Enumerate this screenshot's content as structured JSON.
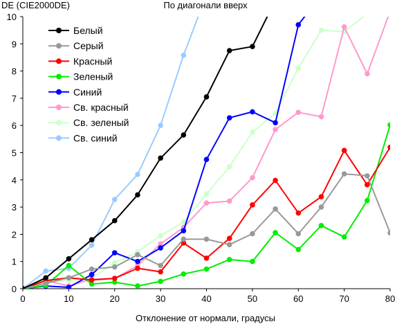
{
  "chart_data": {
    "type": "line",
    "title": "По диагонали вверх",
    "ylabel": "DE (CIE2000DE)",
    "xlabel": "Отклонение от нормали, градусы",
    "xlim": [
      0,
      80
    ],
    "ylim": [
      0,
      10
    ],
    "xticks": [
      0,
      10,
      20,
      30,
      40,
      50,
      60,
      70,
      80
    ],
    "yticks": [
      0,
      1,
      2,
      3,
      4,
      5,
      6,
      7,
      8,
      9,
      10
    ],
    "grid": false,
    "legend_position": "top-left",
    "x": [
      0,
      5,
      10,
      15,
      20,
      25,
      30,
      35,
      40,
      45,
      50,
      55,
      60,
      65,
      70,
      75,
      80
    ],
    "series": [
      {
        "name": "Белый",
        "color": "#000000",
        "values": [
          0,
          0.4,
          1.1,
          1.8,
          2.5,
          3.45,
          4.8,
          5.65,
          7.05,
          8.75,
          8.9,
          10.6,
          null,
          null,
          null,
          null,
          null
        ]
      },
      {
        "name": "Серый",
        "color": "#999999",
        "values": [
          0,
          0.2,
          0.4,
          0.72,
          0.8,
          1.25,
          0.85,
          1.82,
          1.82,
          1.62,
          2.02,
          2.93,
          2.02,
          3.0,
          4.22,
          4.15,
          2.05
        ]
      },
      {
        "name": "Красный",
        "color": "#ff0000",
        "values": [
          0,
          0.3,
          0.4,
          0.32,
          0.38,
          0.75,
          0.62,
          1.68,
          1.12,
          1.85,
          3.08,
          3.98,
          2.78,
          3.38,
          5.08,
          3.82,
          5.2
        ]
      },
      {
        "name": "Зеленый",
        "color": "#00ee00",
        "values": [
          0,
          0.12,
          0.85,
          0.17,
          0.24,
          0.1,
          0.27,
          0.54,
          0.72,
          1.07,
          1.0,
          2.06,
          1.44,
          2.32,
          1.9,
          3.24,
          6.02
        ]
      },
      {
        "name": "Синий",
        "color": "#0000ff",
        "values": [
          0,
          0.1,
          0.05,
          0.52,
          1.32,
          1.0,
          1.5,
          2.13,
          4.75,
          6.28,
          6.5,
          6.1,
          9.7,
          10.8,
          null,
          null,
          null
        ]
      },
      {
        "name": "Св. красный",
        "color": "#ff99cc",
        "values": [
          0,
          0.3,
          0.1,
          0.35,
          0.38,
          0.85,
          1.65,
          2.25,
          3.15,
          3.22,
          4.08,
          5.85,
          6.48,
          6.32,
          9.62,
          7.9,
          10.2
        ]
      },
      {
        "name": "Св. зеленый",
        "color": "#ccffcc",
        "values": [
          0,
          0.25,
          0.3,
          0.4,
          0.95,
          1.35,
          1.95,
          2.45,
          3.48,
          4.48,
          5.75,
          6.45,
          8.1,
          9.5,
          9.45,
          10.1,
          null
        ]
      },
      {
        "name": "Св. синий",
        "color": "#99ccff",
        "values": [
          0,
          0.65,
          0.75,
          1.6,
          3.28,
          4.2,
          6.0,
          8.58,
          10.8,
          null,
          null,
          null,
          null,
          null,
          null,
          null,
          null
        ]
      }
    ]
  }
}
